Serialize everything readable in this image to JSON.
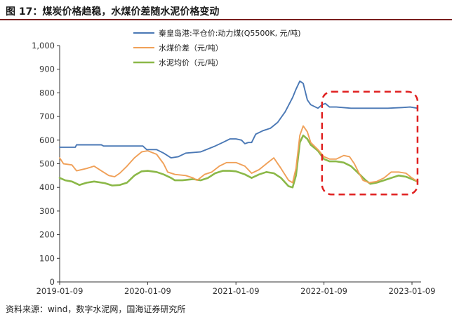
{
  "figure": {
    "title": "图 17：煤炭价格趋稳，水煤价差随水泥价格变动",
    "source": "资料来源：wind，数字水泥网，国海证券研究所"
  },
  "colors": {
    "coal": "#4a78b5",
    "spread": "#f0a058",
    "cement": "#8bb848",
    "highlight": "#e02020",
    "title_rule": "#7a1f1f"
  },
  "chart_data": {
    "type": "line",
    "title": "",
    "xlabel": "",
    "ylabel": "",
    "ylim": [
      0,
      1000
    ],
    "yticks": [
      0,
      100,
      200,
      300,
      400,
      500,
      600,
      700,
      800,
      900,
      1000
    ],
    "ytick_labels": [
      "0",
      "100",
      "200",
      "300",
      "400",
      "500",
      "600",
      "700",
      "800",
      "900",
      "1,000"
    ],
    "xlim": [
      "2019-01-09",
      "2023-02-01"
    ],
    "xticks": [
      "2019-01-09",
      "2020-01-09",
      "2021-01-09",
      "2022-01-09",
      "2023-01-09"
    ],
    "grid": false,
    "legend_position": "top-center",
    "highlight_box": {
      "x_range": [
        "2022-01-01",
        "2023-02-01"
      ],
      "y_range": [
        370,
        805
      ],
      "style": "dashed"
    },
    "series": [
      {
        "name": "秦皇岛港:平仓价:动力煤(Q5500K, 元/吨)",
        "color": "#4a78b5",
        "points": [
          [
            "2019-01-09",
            570
          ],
          [
            "2019-03-15",
            570
          ],
          [
            "2019-03-20",
            580
          ],
          [
            "2019-07-01",
            580
          ],
          [
            "2019-07-10",
            575
          ],
          [
            "2019-12-20",
            575
          ],
          [
            "2020-01-05",
            560
          ],
          [
            "2020-02-15",
            560
          ],
          [
            "2020-03-15",
            545
          ],
          [
            "2020-04-15",
            525
          ],
          [
            "2020-05-15",
            530
          ],
          [
            "2020-06-15",
            545
          ],
          [
            "2020-08-15",
            550
          ],
          [
            "2020-10-15",
            575
          ],
          [
            "2020-11-15",
            590
          ],
          [
            "2020-12-15",
            605
          ],
          [
            "2021-01-09",
            605
          ],
          [
            "2021-02-01",
            600
          ],
          [
            "2021-02-15",
            585
          ],
          [
            "2021-03-01",
            590
          ],
          [
            "2021-03-15",
            590
          ],
          [
            "2021-04-01",
            625
          ],
          [
            "2021-05-01",
            640
          ],
          [
            "2021-06-01",
            650
          ],
          [
            "2021-07-01",
            675
          ],
          [
            "2021-08-01",
            720
          ],
          [
            "2021-09-01",
            780
          ],
          [
            "2021-09-15",
            815
          ],
          [
            "2021-10-01",
            850
          ],
          [
            "2021-10-15",
            840
          ],
          [
            "2021-11-01",
            770
          ],
          [
            "2021-11-15",
            750
          ],
          [
            "2021-12-15",
            735
          ],
          [
            "2022-01-01",
            750
          ],
          [
            "2022-01-15",
            755
          ],
          [
            "2022-02-01",
            740
          ],
          [
            "2022-03-01",
            740
          ],
          [
            "2022-05-01",
            735
          ],
          [
            "2022-10-01",
            735
          ],
          [
            "2022-12-01",
            738
          ],
          [
            "2023-01-01",
            740
          ],
          [
            "2023-02-01",
            735
          ]
        ]
      },
      {
        "name": "水煤价差（元/吨）",
        "color": "#f0a058",
        "points": [
          [
            "2019-01-09",
            525
          ],
          [
            "2019-01-25",
            500
          ],
          [
            "2019-03-01",
            495
          ],
          [
            "2019-03-20",
            470
          ],
          [
            "2019-05-01",
            480
          ],
          [
            "2019-06-01",
            490
          ],
          [
            "2019-07-01",
            470
          ],
          [
            "2019-08-01",
            450
          ],
          [
            "2019-08-25",
            445
          ],
          [
            "2019-09-15",
            460
          ],
          [
            "2019-10-15",
            490
          ],
          [
            "2019-11-15",
            525
          ],
          [
            "2019-12-15",
            550
          ],
          [
            "2020-01-09",
            555
          ],
          [
            "2020-02-15",
            540
          ],
          [
            "2020-03-15",
            500
          ],
          [
            "2020-04-01",
            465
          ],
          [
            "2020-05-01",
            455
          ],
          [
            "2020-06-15",
            450
          ],
          [
            "2020-07-15",
            440
          ],
          [
            "2020-08-01",
            430
          ],
          [
            "2020-09-01",
            455
          ],
          [
            "2020-10-01",
            465
          ],
          [
            "2020-11-01",
            490
          ],
          [
            "2020-12-01",
            505
          ],
          [
            "2021-01-09",
            505
          ],
          [
            "2021-02-15",
            490
          ],
          [
            "2021-03-15",
            460
          ],
          [
            "2021-04-15",
            475
          ],
          [
            "2021-05-15",
            500
          ],
          [
            "2021-06-15",
            525
          ],
          [
            "2021-07-15",
            480
          ],
          [
            "2021-08-15",
            430
          ],
          [
            "2021-09-01",
            420
          ],
          [
            "2021-09-15",
            480
          ],
          [
            "2021-10-01",
            620
          ],
          [
            "2021-10-15",
            660
          ],
          [
            "2021-11-01",
            635
          ],
          [
            "2021-11-15",
            590
          ],
          [
            "2021-12-15",
            560
          ],
          [
            "2022-01-09",
            530
          ],
          [
            "2022-02-01",
            520
          ],
          [
            "2022-03-01",
            520
          ],
          [
            "2022-04-01",
            535
          ],
          [
            "2022-04-25",
            530
          ],
          [
            "2022-05-15",
            500
          ],
          [
            "2022-06-01",
            465
          ],
          [
            "2022-06-20",
            430
          ],
          [
            "2022-07-15",
            420
          ],
          [
            "2022-08-15",
            425
          ],
          [
            "2022-09-15",
            440
          ],
          [
            "2022-10-15",
            465
          ],
          [
            "2022-11-15",
            465
          ],
          [
            "2022-12-15",
            460
          ],
          [
            "2023-01-09",
            440
          ],
          [
            "2023-02-01",
            425
          ]
        ]
      },
      {
        "name": "水泥均价（元/吨）",
        "color": "#8bb848",
        "points": [
          [
            "2019-01-09",
            440
          ],
          [
            "2019-02-01",
            430
          ],
          [
            "2019-03-01",
            425
          ],
          [
            "2019-04-01",
            410
          ],
          [
            "2019-05-01",
            420
          ],
          [
            "2019-06-01",
            425
          ],
          [
            "2019-07-15",
            418
          ],
          [
            "2019-08-15",
            408
          ],
          [
            "2019-09-15",
            410
          ],
          [
            "2019-10-15",
            420
          ],
          [
            "2019-11-15",
            450
          ],
          [
            "2019-12-15",
            468
          ],
          [
            "2020-01-09",
            470
          ],
          [
            "2020-02-15",
            465
          ],
          [
            "2020-03-15",
            455
          ],
          [
            "2020-04-15",
            440
          ],
          [
            "2020-05-01",
            430
          ],
          [
            "2020-06-01",
            430
          ],
          [
            "2020-07-15",
            435
          ],
          [
            "2020-08-15",
            430
          ],
          [
            "2020-09-15",
            440
          ],
          [
            "2020-10-15",
            460
          ],
          [
            "2020-11-15",
            470
          ],
          [
            "2020-12-15",
            470
          ],
          [
            "2021-01-09",
            468
          ],
          [
            "2021-02-15",
            455
          ],
          [
            "2021-03-15",
            440
          ],
          [
            "2021-04-15",
            455
          ],
          [
            "2021-05-15",
            465
          ],
          [
            "2021-06-15",
            460
          ],
          [
            "2021-07-15",
            440
          ],
          [
            "2021-08-15",
            405
          ],
          [
            "2021-09-01",
            400
          ],
          [
            "2021-09-15",
            450
          ],
          [
            "2021-10-01",
            590
          ],
          [
            "2021-10-15",
            620
          ],
          [
            "2021-11-01",
            605
          ],
          [
            "2021-11-15",
            580
          ],
          [
            "2021-12-15",
            555
          ],
          [
            "2022-01-09",
            520
          ],
          [
            "2022-02-01",
            510
          ],
          [
            "2022-03-01",
            510
          ],
          [
            "2022-04-01",
            505
          ],
          [
            "2022-05-01",
            490
          ],
          [
            "2022-06-01",
            460
          ],
          [
            "2022-07-01",
            430
          ],
          [
            "2022-07-20",
            415
          ],
          [
            "2022-08-15",
            420
          ],
          [
            "2022-09-15",
            430
          ],
          [
            "2022-10-15",
            440
          ],
          [
            "2022-11-15",
            450
          ],
          [
            "2022-12-15",
            445
          ],
          [
            "2023-01-09",
            435
          ],
          [
            "2023-02-01",
            425
          ]
        ]
      }
    ]
  }
}
